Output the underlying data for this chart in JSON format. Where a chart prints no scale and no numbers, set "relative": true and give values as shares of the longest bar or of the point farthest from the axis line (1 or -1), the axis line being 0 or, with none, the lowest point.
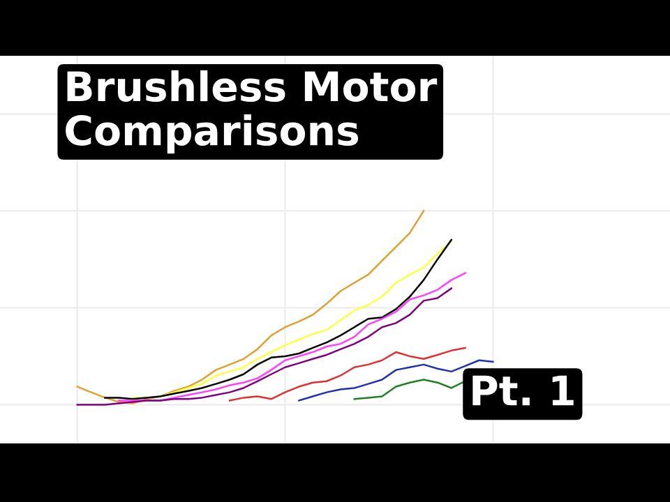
{
  "chart_data": {
    "type": "line",
    "title": "Brushless Motor\nComparisons",
    "annotations": [
      "Pt. 1"
    ],
    "relative": true,
    "grid": true,
    "categories": [
      null,
      null,
      null,
      null,
      null,
      null,
      null,
      null,
      null,
      null,
      null,
      null,
      null,
      null,
      null,
      null,
      null,
      null,
      null,
      null,
      null,
      null,
      null,
      null,
      null,
      null,
      null,
      null,
      null,
      null,
      null
    ],
    "series": [
      {
        "color": "#e0a030",
        "values": [
          0.093,
          0.064,
          0.036,
          0.014,
          0.007,
          0.029,
          0.043,
          0.071,
          0.093,
          0.129,
          0.179,
          0.207,
          0.236,
          0.286,
          0.357,
          0.4,
          0.429,
          0.464,
          0.521,
          0.586,
          0.629,
          0.671,
          0.743,
          0.814,
          0.886,
          1.0,
          null,
          null,
          null,
          null,
          null
        ]
      },
      {
        "color": "#ffff40",
        "values": [
          null,
          null,
          null,
          null,
          0.036,
          0.036,
          0.043,
          0.064,
          0.086,
          0.107,
          0.15,
          0.171,
          0.193,
          0.236,
          0.271,
          0.307,
          0.336,
          0.364,
          0.386,
          0.436,
          0.486,
          0.514,
          0.557,
          0.629,
          0.671,
          0.707,
          0.779,
          0.843,
          null,
          null,
          null
        ]
      },
      {
        "color": "#000000",
        "values": [
          null,
          null,
          0.036,
          0.036,
          0.029,
          0.036,
          0.043,
          0.057,
          0.071,
          0.086,
          0.107,
          0.129,
          0.157,
          0.207,
          0.243,
          0.25,
          0.264,
          0.293,
          0.321,
          0.357,
          0.4,
          0.443,
          0.45,
          0.493,
          0.557,
          0.643,
          0.75,
          0.85,
          null,
          null,
          null
        ]
      },
      {
        "color": "#ff40ff",
        "values": [
          null,
          null,
          null,
          0.021,
          0.021,
          0.021,
          0.021,
          0.036,
          0.05,
          0.064,
          0.079,
          0.1,
          0.114,
          0.136,
          0.179,
          0.229,
          0.25,
          0.271,
          0.3,
          0.314,
          0.35,
          0.414,
          0.443,
          0.479,
          0.543,
          0.564,
          0.593,
          0.643,
          0.679,
          null,
          null
        ]
      },
      {
        "color": "#800080",
        "values": [
          0,
          0,
          0,
          0.007,
          0.014,
          0.021,
          0.021,
          0.029,
          0.029,
          0.036,
          0.05,
          0.064,
          0.086,
          0.121,
          0.157,
          0.193,
          0.214,
          0.236,
          0.257,
          0.286,
          0.314,
          0.35,
          0.4,
          0.421,
          0.464,
          0.536,
          0.55,
          0.6,
          null,
          null,
          null
        ]
      },
      {
        "color": "#e03030",
        "values": [
          null,
          null,
          null,
          null,
          null,
          null,
          null,
          null,
          null,
          null,
          null,
          0.021,
          0.036,
          0.043,
          0.029,
          0.064,
          0.093,
          0.114,
          0.121,
          0.15,
          0.193,
          0.207,
          0.229,
          0.271,
          0.25,
          0.236,
          0.257,
          0.279,
          0.293,
          null,
          null
        ]
      },
      {
        "color": "#2030b0",
        "values": [
          null,
          null,
          null,
          null,
          null,
          null,
          null,
          null,
          null,
          null,
          null,
          null,
          null,
          null,
          null,
          null,
          0.021,
          0.043,
          0.064,
          0.079,
          0.086,
          0.107,
          0.129,
          0.179,
          0.193,
          0.207,
          0.186,
          0.171,
          0.2,
          0.229,
          0.221
        ]
      },
      {
        "color": "#208020",
        "values": [
          null,
          null,
          null,
          null,
          null,
          null,
          null,
          null,
          null,
          null,
          null,
          null,
          null,
          null,
          null,
          null,
          null,
          null,
          null,
          null,
          0.029,
          0.036,
          0.043,
          0.093,
          0.114,
          0.129,
          0.114,
          0.086,
          0.121,
          null,
          null
        ]
      }
    ]
  }
}
